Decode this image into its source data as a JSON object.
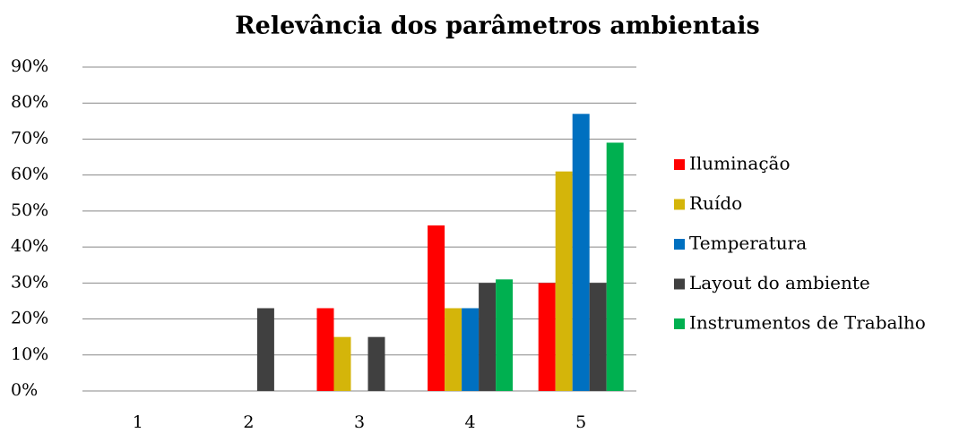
{
  "chart_data": {
    "type": "bar",
    "title": "Relevância dos parâmetros ambientais",
    "categories": [
      "1",
      "2",
      "3",
      "4",
      "5"
    ],
    "series": [
      {
        "name": "Iluminação",
        "color": "#ff0000",
        "values": [
          0,
          0,
          23,
          46,
          30
        ]
      },
      {
        "name": "Ruído",
        "color": "#d4b50a",
        "values": [
          0,
          0,
          15,
          23,
          61
        ]
      },
      {
        "name": "Temperatura",
        "color": "#0070c0",
        "values": [
          0,
          0,
          0,
          23,
          77
        ]
      },
      {
        "name": "Layout do ambiente",
        "color": "#404040",
        "values": [
          0,
          23,
          15,
          30,
          30
        ]
      },
      {
        "name": "Instrumentos de Trabalho",
        "color": "#00b050",
        "values": [
          0,
          0,
          0,
          31,
          69
        ]
      }
    ],
    "ylim": [
      0,
      90
    ],
    "yticks": [
      {
        "value": 0,
        "label": "0%"
      },
      {
        "value": 10,
        "label": "10%"
      },
      {
        "value": 20,
        "label": "20%"
      },
      {
        "value": 30,
        "label": "30%"
      },
      {
        "value": 40,
        "label": "40%"
      },
      {
        "value": 50,
        "label": "50%"
      },
      {
        "value": 60,
        "label": "60%"
      },
      {
        "value": 70,
        "label": "70%"
      },
      {
        "value": 80,
        "label": "80%"
      },
      {
        "value": 90,
        "label": "90%"
      }
    ],
    "grid": true,
    "legend": "right"
  }
}
